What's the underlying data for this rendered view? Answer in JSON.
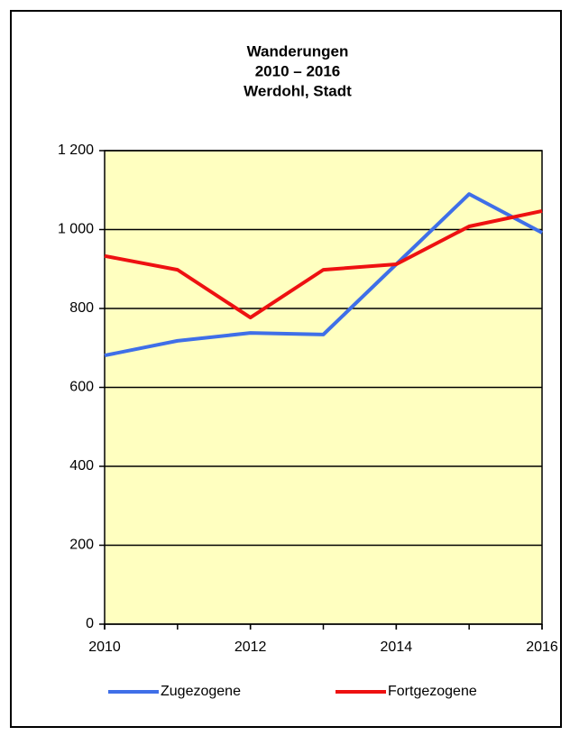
{
  "chart_data": {
    "type": "line",
    "title": [
      "Wanderungen",
      "2010 – 2016",
      "Werdohl, Stadt"
    ],
    "x": [
      2010,
      2011,
      2012,
      2013,
      2014,
      2015,
      2016
    ],
    "series": [
      {
        "name": "Zugezogene",
        "color": "#3f6fe8",
        "values": [
          681,
          718,
          738,
          734,
          912,
          1090,
          992
        ]
      },
      {
        "name": "Fortgezogene",
        "color": "#ee1111",
        "values": [
          933,
          898,
          777,
          898,
          912,
          1008,
          1047
        ]
      }
    ],
    "xlim": [
      2010,
      2016
    ],
    "xticks": [
      2010,
      2012,
      2014,
      2016
    ],
    "ylim": [
      0,
      1200
    ],
    "yticks": [
      0,
      200,
      400,
      600,
      800,
      {
        "value": 1000,
        "label": "1 000"
      },
      {
        "value": 1200,
        "label": "1 200"
      }
    ],
    "grid": true,
    "legend": "bottom",
    "background": "#ffffc0"
  }
}
